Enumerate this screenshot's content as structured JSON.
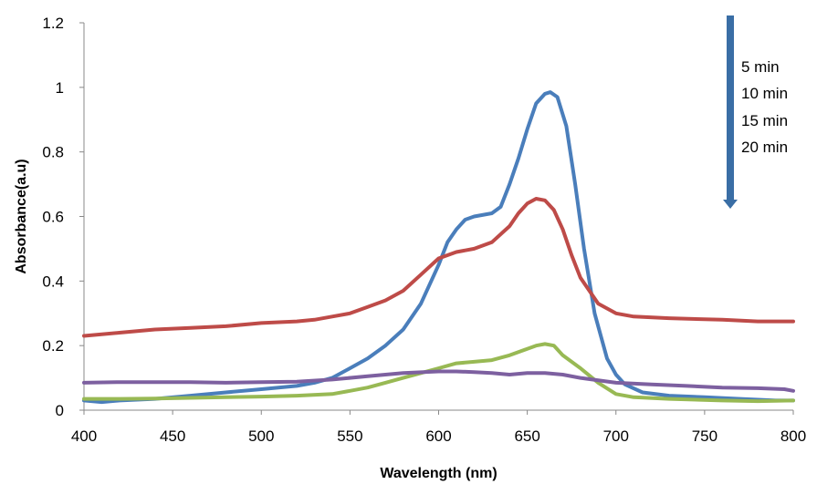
{
  "chart_data": {
    "type": "line",
    "title": "",
    "xlabel": "Wavelength (nm)",
    "ylabel": "Absorbance(a.u)",
    "xlim": [
      400,
      800
    ],
    "ylim": [
      0,
      1.2
    ],
    "x_ticks": [
      400,
      450,
      500,
      550,
      600,
      650,
      700,
      750,
      800
    ],
    "y_ticks": [
      0,
      0.2,
      0.4,
      0.6,
      0.8,
      1,
      1.2
    ],
    "y_tick_labels": [
      "0",
      "0.2",
      "0.4",
      "0.6",
      "0.8",
      "1",
      "1.2"
    ],
    "grid": false,
    "annotation": {
      "arrow_direction": "down",
      "arrow_color": "#3A6EA5",
      "labels": [
        "5 min",
        "10 min",
        "15 min",
        "20 min"
      ]
    },
    "series": [
      {
        "color": "#4A7EBB",
        "points": [
          [
            400,
            0.03
          ],
          [
            410,
            0.025
          ],
          [
            420,
            0.03
          ],
          [
            440,
            0.035
          ],
          [
            460,
            0.045
          ],
          [
            480,
            0.055
          ],
          [
            500,
            0.065
          ],
          [
            520,
            0.075
          ],
          [
            530,
            0.085
          ],
          [
            540,
            0.1
          ],
          [
            550,
            0.13
          ],
          [
            560,
            0.16
          ],
          [
            570,
            0.2
          ],
          [
            580,
            0.25
          ],
          [
            590,
            0.33
          ],
          [
            600,
            0.45
          ],
          [
            605,
            0.52
          ],
          [
            610,
            0.56
          ],
          [
            615,
            0.59
          ],
          [
            620,
            0.6
          ],
          [
            630,
            0.61
          ],
          [
            635,
            0.63
          ],
          [
            640,
            0.7
          ],
          [
            645,
            0.78
          ],
          [
            650,
            0.87
          ],
          [
            655,
            0.95
          ],
          [
            660,
            0.98
          ],
          [
            663,
            0.985
          ],
          [
            667,
            0.97
          ],
          [
            672,
            0.88
          ],
          [
            677,
            0.7
          ],
          [
            682,
            0.5
          ],
          [
            688,
            0.3
          ],
          [
            695,
            0.16
          ],
          [
            700,
            0.11
          ],
          [
            705,
            0.08
          ],
          [
            715,
            0.055
          ],
          [
            730,
            0.045
          ],
          [
            750,
            0.04
          ],
          [
            770,
            0.035
          ],
          [
            790,
            0.03
          ],
          [
            800,
            0.03
          ]
        ]
      },
      {
        "color": "#BE4B48",
        "points": [
          [
            400,
            0.23
          ],
          [
            420,
            0.24
          ],
          [
            440,
            0.25
          ],
          [
            460,
            0.255
          ],
          [
            480,
            0.26
          ],
          [
            500,
            0.27
          ],
          [
            520,
            0.275
          ],
          [
            530,
            0.28
          ],
          [
            540,
            0.29
          ],
          [
            550,
            0.3
          ],
          [
            560,
            0.32
          ],
          [
            570,
            0.34
          ],
          [
            580,
            0.37
          ],
          [
            590,
            0.42
          ],
          [
            600,
            0.47
          ],
          [
            610,
            0.49
          ],
          [
            620,
            0.5
          ],
          [
            630,
            0.52
          ],
          [
            640,
            0.57
          ],
          [
            645,
            0.61
          ],
          [
            650,
            0.64
          ],
          [
            655,
            0.655
          ],
          [
            660,
            0.65
          ],
          [
            665,
            0.62
          ],
          [
            670,
            0.56
          ],
          [
            675,
            0.48
          ],
          [
            680,
            0.41
          ],
          [
            690,
            0.33
          ],
          [
            700,
            0.3
          ],
          [
            710,
            0.29
          ],
          [
            730,
            0.285
          ],
          [
            760,
            0.28
          ],
          [
            780,
            0.275
          ],
          [
            800,
            0.275
          ]
        ]
      },
      {
        "color": "#98B954",
        "points": [
          [
            400,
            0.035
          ],
          [
            420,
            0.035
          ],
          [
            440,
            0.036
          ],
          [
            460,
            0.038
          ],
          [
            480,
            0.04
          ],
          [
            500,
            0.042
          ],
          [
            520,
            0.045
          ],
          [
            540,
            0.05
          ],
          [
            550,
            0.06
          ],
          [
            560,
            0.07
          ],
          [
            570,
            0.085
          ],
          [
            580,
            0.1
          ],
          [
            590,
            0.115
          ],
          [
            600,
            0.13
          ],
          [
            610,
            0.145
          ],
          [
            620,
            0.15
          ],
          [
            630,
            0.155
          ],
          [
            640,
            0.17
          ],
          [
            650,
            0.19
          ],
          [
            655,
            0.2
          ],
          [
            660,
            0.205
          ],
          [
            665,
            0.2
          ],
          [
            670,
            0.17
          ],
          [
            680,
            0.13
          ],
          [
            690,
            0.085
          ],
          [
            700,
            0.05
          ],
          [
            710,
            0.04
          ],
          [
            730,
            0.035
          ],
          [
            760,
            0.03
          ],
          [
            780,
            0.028
          ],
          [
            800,
            0.03
          ]
        ]
      },
      {
        "color": "#7D60A0",
        "points": [
          [
            400,
            0.085
          ],
          [
            420,
            0.087
          ],
          [
            440,
            0.087
          ],
          [
            460,
            0.087
          ],
          [
            480,
            0.085
          ],
          [
            500,
            0.087
          ],
          [
            520,
            0.088
          ],
          [
            540,
            0.095
          ],
          [
            560,
            0.105
          ],
          [
            580,
            0.115
          ],
          [
            600,
            0.12
          ],
          [
            610,
            0.12
          ],
          [
            620,
            0.118
          ],
          [
            630,
            0.115
          ],
          [
            640,
            0.11
          ],
          [
            650,
            0.115
          ],
          [
            660,
            0.115
          ],
          [
            670,
            0.11
          ],
          [
            680,
            0.1
          ],
          [
            700,
            0.085
          ],
          [
            720,
            0.08
          ],
          [
            740,
            0.075
          ],
          [
            760,
            0.07
          ],
          [
            780,
            0.068
          ],
          [
            795,
            0.065
          ],
          [
            800,
            0.06
          ]
        ]
      }
    ]
  }
}
